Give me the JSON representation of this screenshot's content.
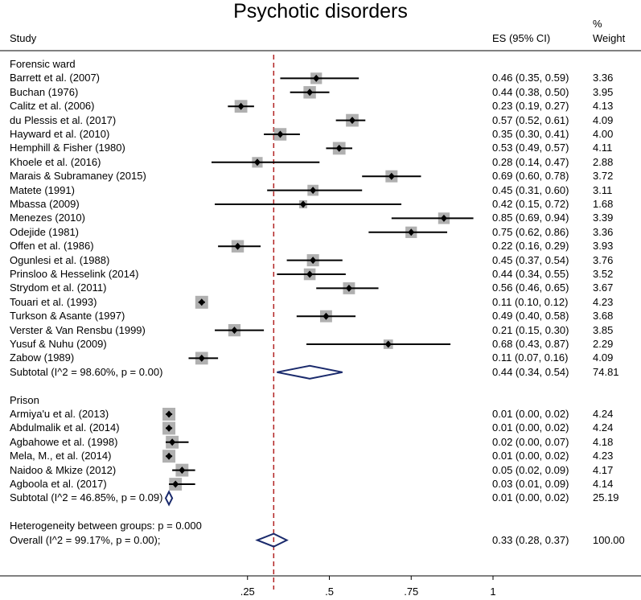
{
  "title": "Psychotic disorders",
  "headers": {
    "study": "Study",
    "es": "ES (95% CI)",
    "weight_pct": "%",
    "weight": "Weight"
  },
  "colors": {
    "diamond": "#1a2a6c",
    "box": "#b0b0b0",
    "reference_line": "#b22222",
    "line": "#000000"
  },
  "chart_data": {
    "type": "forest",
    "xlim": [
      0.0,
      1.0
    ],
    "overall_line": 0.33,
    "xticks": [
      {
        "value": 0.25,
        "label": ".25"
      },
      {
        "value": 0.5,
        "label": ".5"
      },
      {
        "value": 0.75,
        "label": ".75"
      },
      {
        "value": 1.0,
        "label": "1"
      }
    ],
    "groups": [
      {
        "name": "Forensic ward",
        "studies": [
          {
            "study": "Barrett et al. (2007)",
            "es": 0.46,
            "lo": 0.35,
            "hi": 0.59,
            "ci": "0.46 (0.35, 0.59)",
            "weight": "3.36"
          },
          {
            "study": "Buchan (1976)",
            "es": 0.44,
            "lo": 0.38,
            "hi": 0.5,
            "ci": "0.44 (0.38, 0.50)",
            "weight": "3.95"
          },
          {
            "study": "Calitz et al. (2006)",
            "es": 0.23,
            "lo": 0.19,
            "hi": 0.27,
            "ci": "0.23 (0.19, 0.27)",
            "weight": "4.13"
          },
          {
            "study": "du Plessis et al. (2017)",
            "es": 0.57,
            "lo": 0.52,
            "hi": 0.61,
            "ci": "0.57 (0.52, 0.61)",
            "weight": "4.09"
          },
          {
            "study": "Hayward et al. (2010)",
            "es": 0.35,
            "lo": 0.3,
            "hi": 0.41,
            "ci": "0.35 (0.30, 0.41)",
            "weight": "4.00"
          },
          {
            "study": "Hemphill & Fisher (1980)",
            "es": 0.53,
            "lo": 0.49,
            "hi": 0.57,
            "ci": "0.53 (0.49, 0.57)",
            "weight": "4.11"
          },
          {
            "study": "Khoele et al. (2016)",
            "es": 0.28,
            "lo": 0.14,
            "hi": 0.47,
            "ci": "0.28 (0.14, 0.47)",
            "weight": "2.88"
          },
          {
            "study": "Marais & Subramaney (2015)",
            "es": 0.69,
            "lo": 0.6,
            "hi": 0.78,
            "ci": "0.69 (0.60, 0.78)",
            "weight": "3.72"
          },
          {
            "study": "Matete (1991)",
            "es": 0.45,
            "lo": 0.31,
            "hi": 0.6,
            "ci": "0.45 (0.31, 0.60)",
            "weight": "3.11"
          },
          {
            "study": "Mbassa (2009)",
            "es": 0.42,
            "lo": 0.15,
            "hi": 0.72,
            "ci": "0.42 (0.15, 0.72)",
            "weight": "1.68"
          },
          {
            "study": "Menezes (2010)",
            "es": 0.85,
            "lo": 0.69,
            "hi": 0.94,
            "ci": "0.85 (0.69, 0.94)",
            "weight": "3.39"
          },
          {
            "study": "Odejide (1981)",
            "es": 0.75,
            "lo": 0.62,
            "hi": 0.86,
            "ci": "0.75 (0.62, 0.86)",
            "weight": "3.36"
          },
          {
            "study": "Offen et al. (1986)",
            "es": 0.22,
            "lo": 0.16,
            "hi": 0.29,
            "ci": "0.22 (0.16, 0.29)",
            "weight": "3.93"
          },
          {
            "study": "Ogunlesi et al. (1988)",
            "es": 0.45,
            "lo": 0.37,
            "hi": 0.54,
            "ci": "0.45 (0.37, 0.54)",
            "weight": "3.76"
          },
          {
            "study": "Prinsloo & Hesselink (2014)",
            "es": 0.44,
            "lo": 0.34,
            "hi": 0.55,
            "ci": "0.44 (0.34, 0.55)",
            "weight": "3.52"
          },
          {
            "study": "Strydom et al. (2011)",
            "es": 0.56,
            "lo": 0.46,
            "hi": 0.65,
            "ci": "0.56 (0.46, 0.65)",
            "weight": "3.67"
          },
          {
            "study": "Touari et al. (1993)",
            "es": 0.11,
            "lo": 0.1,
            "hi": 0.12,
            "ci": "0.11 (0.10, 0.12)",
            "weight": "4.23"
          },
          {
            "study": "Turkson & Asante (1997)",
            "es": 0.49,
            "lo": 0.4,
            "hi": 0.58,
            "ci": "0.49 (0.40, 0.58)",
            "weight": "3.68"
          },
          {
            "study": "Verster & Van Rensbu (1999)",
            "es": 0.21,
            "lo": 0.15,
            "hi": 0.3,
            "ci": "0.21 (0.15, 0.30)",
            "weight": "3.85"
          },
          {
            "study": "Yusuf & Nuhu (2009)",
            "es": 0.68,
            "lo": 0.43,
            "hi": 0.87,
            "ci": "0.68 (0.43, 0.87)",
            "weight": "2.29"
          },
          {
            "study": "Zabow (1989)",
            "es": 0.11,
            "lo": 0.07,
            "hi": 0.16,
            "ci": "0.11 (0.07, 0.16)",
            "weight": "4.09"
          }
        ],
        "subtotal": {
          "label": "Subtotal  (I^2 = 98.60%, p = 0.00)",
          "es": 0.44,
          "lo": 0.34,
          "hi": 0.54,
          "ci": "0.44 (0.34, 0.54)",
          "weight": "74.81"
        }
      },
      {
        "name": "Prison",
        "studies": [
          {
            "study": "Armiya'u et al. (2013)",
            "es": 0.01,
            "lo": 0.0,
            "hi": 0.02,
            "ci": "0.01 (0.00, 0.02)",
            "weight": "4.24"
          },
          {
            "study": "Abdulmalik et al. (2014)",
            "es": 0.01,
            "lo": 0.0,
            "hi": 0.02,
            "ci": "0.01 (0.00, 0.02)",
            "weight": "4.24"
          },
          {
            "study": "Agbahowe et al. (1998)",
            "es": 0.02,
            "lo": 0.0,
            "hi": 0.07,
            "ci": "0.02 (0.00, 0.07)",
            "weight": "4.18"
          },
          {
            "study": "Mela, M., et al. (2014)",
            "es": 0.01,
            "lo": 0.0,
            "hi": 0.02,
            "ci": "0.01 (0.00, 0.02)",
            "weight": "4.23"
          },
          {
            "study": "Naidoo & Mkize (2012)",
            "es": 0.05,
            "lo": 0.02,
            "hi": 0.09,
            "ci": "0.05 (0.02, 0.09)",
            "weight": "4.17"
          },
          {
            "study": "Agboola et al. (2017)",
            "es": 0.03,
            "lo": 0.01,
            "hi": 0.09,
            "ci": "0.03 (0.01, 0.09)",
            "weight": "4.14"
          }
        ],
        "subtotal": {
          "label": "Subtotal  (I^2 = 46.85%, p = 0.09)",
          "es": 0.01,
          "lo": 0.0,
          "hi": 0.02,
          "ci": "0.01 (0.00, 0.02)",
          "weight": "25.19"
        }
      }
    ],
    "heterogeneity": "Heterogeneity between groups: p = 0.000",
    "overall": {
      "label": "Overall  (I^2 = 99.17%, p = 0.00);",
      "es": 0.33,
      "lo": 0.28,
      "hi": 0.37,
      "ci": "0.33 (0.28, 0.37)",
      "weight": "100.00"
    }
  }
}
